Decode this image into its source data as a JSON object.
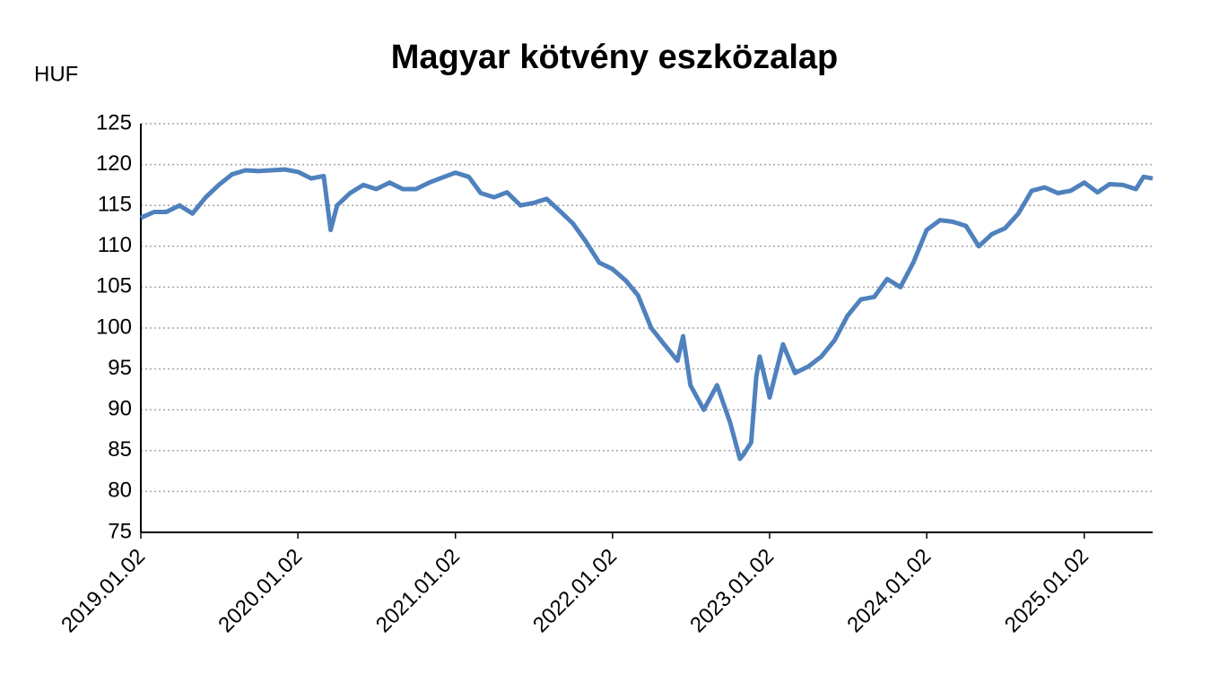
{
  "chart_data": {
    "type": "line",
    "title": "Magyar kötvény eszközalap",
    "y_label": "HUF",
    "x": [
      "2019.01.02",
      "2019.02.02",
      "2019.03.02",
      "2019.04.02",
      "2019.05.02",
      "2019.06.02",
      "2019.07.02",
      "2019.08.02",
      "2019.09.02",
      "2019.10.02",
      "2019.11.02",
      "2019.12.02",
      "2020.01.02",
      "2020.02.02",
      "2020.03.02",
      "2020.03.18",
      "2020.04.02",
      "2020.05.02",
      "2020.06.02",
      "2020.07.02",
      "2020.08.02",
      "2020.09.02",
      "2020.10.02",
      "2020.11.02",
      "2020.12.02",
      "2021.01.02",
      "2021.02.02",
      "2021.03.02",
      "2021.04.02",
      "2021.05.02",
      "2021.06.02",
      "2021.07.02",
      "2021.08.02",
      "2021.09.02",
      "2021.10.02",
      "2021.11.02",
      "2021.12.02",
      "2022.01.02",
      "2022.02.02",
      "2022.03.02",
      "2022.04.02",
      "2022.05.02",
      "2022.06.02",
      "2022.06.15",
      "2022.07.02",
      "2022.08.02",
      "2022.09.02",
      "2022.10.02",
      "2022.10.25",
      "2022.11.02",
      "2022.11.20",
      "2022.12.02",
      "2022.12.10",
      "2023.01.02",
      "2023.02.02",
      "2023.03.02",
      "2023.04.02",
      "2023.05.02",
      "2023.06.02",
      "2023.07.02",
      "2023.08.02",
      "2023.09.02",
      "2023.10.02",
      "2023.11.02",
      "2023.12.02",
      "2024.01.02",
      "2024.02.02",
      "2024.03.02",
      "2024.04.02",
      "2024.05.02",
      "2024.06.02",
      "2024.07.02",
      "2024.08.02",
      "2024.09.02",
      "2024.10.02",
      "2024.11.02",
      "2024.12.02",
      "2025.01.02",
      "2025.02.02",
      "2025.03.02",
      "2025.04.02",
      "2025.05.02",
      "2025.05.20",
      "2025.06.10"
    ],
    "series": [
      {
        "name": "Magyar kötvény eszközalap",
        "color": "#4f81bd",
        "values": [
          113.5,
          114.2,
          114.2,
          115,
          114,
          116,
          117.5,
          118.8,
          119.3,
          119.2,
          119.3,
          119.4,
          119.1,
          118.3,
          118.6,
          112,
          115,
          116.5,
          117.5,
          117,
          117.8,
          117,
          117,
          117.8,
          118.4,
          119,
          118.5,
          116.5,
          116,
          116.6,
          115,
          115.3,
          115.8,
          114.3,
          112.8,
          110.5,
          108,
          107.2,
          105.8,
          104,
          100,
          98,
          96,
          99,
          93,
          90,
          93,
          88.5,
          84,
          84.5,
          86,
          94,
          96.5,
          91.5,
          98,
          94.5,
          95.3,
          96.5,
          98.5,
          101.5,
          103.5,
          103.8,
          106,
          105,
          108,
          112,
          113.2,
          113,
          112.5,
          110,
          111.5,
          112.2,
          114,
          116.8,
          117.2,
          116.5,
          116.8,
          117.8,
          116.6,
          117.6,
          117.5,
          117,
          118.5,
          118.3
        ]
      }
    ],
    "xlim": [
      "2019.01.02",
      "2025.06.10"
    ],
    "xticks": [
      "2019.01.02",
      "2020.01.02",
      "2021.01.02",
      "2022.01.02",
      "2023.01.02",
      "2024.01.02",
      "2025.01.02"
    ],
    "ylim": [
      75,
      125
    ],
    "yticks": [
      75,
      80,
      85,
      90,
      95,
      100,
      105,
      110,
      115,
      120,
      125
    ],
    "grid": true
  }
}
